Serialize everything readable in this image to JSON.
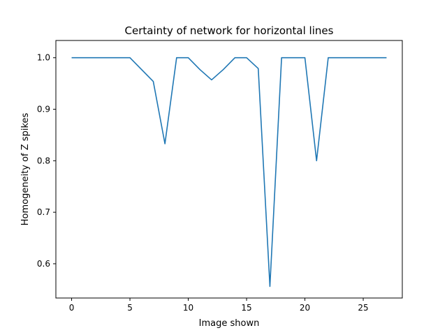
{
  "chart_data": {
    "type": "line",
    "title": "Certainty of network for horizontal lines",
    "xlabel": "Image shown",
    "ylabel": "Homogeneity of Z spikes",
    "xlim": [
      -1.35,
      28.35
    ],
    "ylim": [
      0.5335,
      1.0335
    ],
    "xticks": [
      0,
      5,
      10,
      15,
      20,
      25
    ],
    "yticks": [
      0.6,
      0.7,
      0.8,
      0.9,
      1.0
    ],
    "ytick_labels": [
      "0.6",
      "0.7",
      "0.8",
      "0.9",
      "1.0"
    ],
    "grid": false,
    "legend": "none",
    "series": [
      {
        "color": "#1f77b4",
        "x": [
          0,
          1,
          2,
          3,
          4,
          5,
          6,
          7,
          8,
          9,
          10,
          11,
          12,
          13,
          14,
          15,
          16,
          17,
          18,
          19,
          20,
          21,
          22,
          23,
          24,
          25,
          26,
          27
        ],
        "y": [
          1.0,
          1.0,
          1.0,
          1.0,
          1.0,
          1.0,
          0.977,
          0.954,
          0.833,
          1.0,
          1.0,
          0.977,
          0.957,
          0.977,
          1.0,
          1.0,
          0.979,
          0.556,
          1.0,
          1.0,
          1.0,
          0.8,
          1.0,
          1.0,
          1.0,
          1.0,
          1.0,
          1.0
        ]
      }
    ]
  }
}
